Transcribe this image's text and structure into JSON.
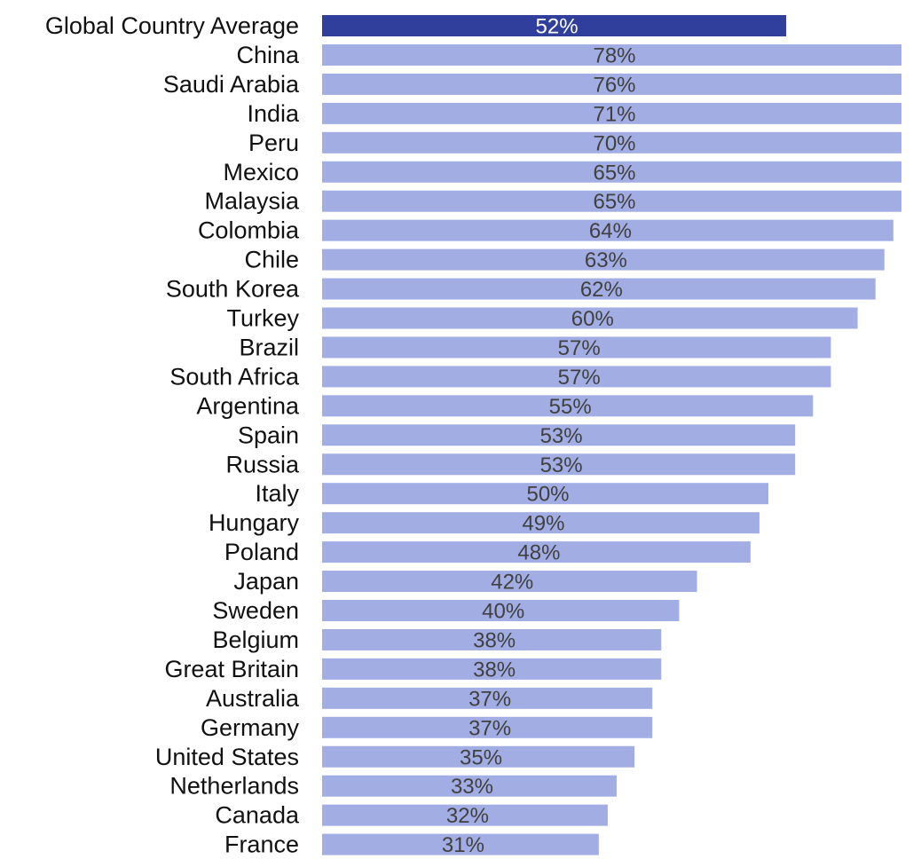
{
  "chart_data": {
    "type": "bar",
    "orientation": "horizontal",
    "categories": [
      "Global Country Average",
      "China",
      "Saudi Arabia",
      "India",
      "Peru",
      "Mexico",
      "Malaysia",
      "Colombia",
      "Chile",
      "South Korea",
      "Turkey",
      "Brazil",
      "South Africa",
      "Argentina",
      "Spain",
      "Russia",
      "Italy",
      "Hungary",
      "Poland",
      "Japan",
      "Sweden",
      "Belgium",
      "Great Britain",
      "Australia",
      "Germany",
      "United States",
      "Netherlands",
      "Canada",
      "France"
    ],
    "values": [
      52,
      78,
      76,
      71,
      70,
      65,
      65,
      64,
      63,
      62,
      60,
      57,
      57,
      55,
      53,
      53,
      50,
      49,
      48,
      42,
      40,
      38,
      38,
      37,
      37,
      35,
      33,
      32,
      31
    ],
    "value_labels": [
      "52%",
      "78%",
      "76%",
      "71%",
      "70%",
      "65%",
      "65%",
      "64%",
      "63%",
      "62%",
      "60%",
      "57%",
      "57%",
      "55%",
      "53%",
      "53%",
      "50%",
      "49%",
      "48%",
      "42%",
      "40%",
      "38%",
      "38%",
      "37%",
      "37%",
      "35%",
      "33%",
      "32%",
      "31%"
    ],
    "highlight_index": 0,
    "title": "",
    "xlabel": "",
    "ylabel": "",
    "grid": false,
    "legend": "none",
    "colors": {
      "bar": "#a2aee3",
      "highlight_bar": "#2f3f9b",
      "label_on_bar": "#404040",
      "label_on_highlight": "#ffffff",
      "category_text": "#111111"
    }
  }
}
